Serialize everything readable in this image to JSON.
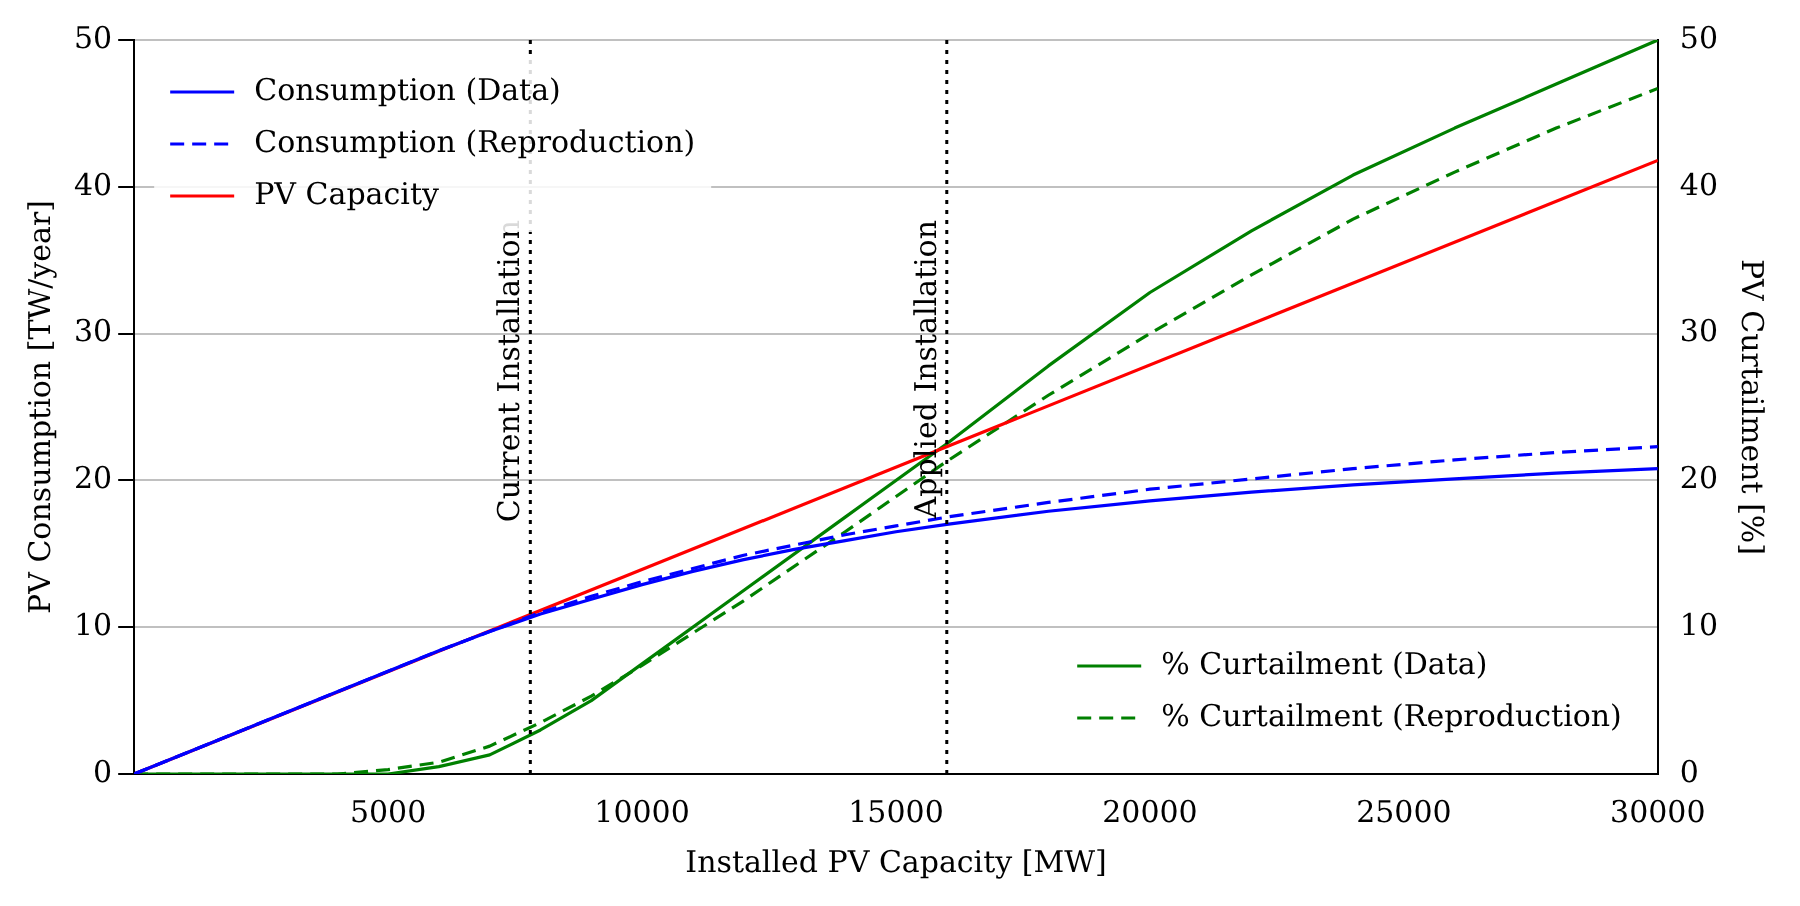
{
  "chart_data": {
    "type": "line",
    "xlabel": "Installed PV Capacity [MW]",
    "ylabel": "PV Consumption [TW/year]",
    "y2label": "PV Curtailment [%]",
    "xlim": [
      0,
      30000
    ],
    "xticks": [
      5000,
      10000,
      15000,
      20000,
      25000,
      30000
    ],
    "ylim": [
      0,
      50
    ],
    "yticks": [
      0,
      10,
      20,
      30,
      40,
      50
    ],
    "y2lim": [
      0,
      50
    ],
    "y2ticks": [
      0,
      10,
      20,
      30,
      40,
      50
    ],
    "grid": "y",
    "legend": "top left",
    "marker": "none",
    "series": [
      {
        "name": "Consumption (Data)",
        "color": "#0000ff",
        "line_style": "solid",
        "x": [
          0,
          2000,
          4000,
          6000,
          7000,
          8000,
          9000,
          10000,
          11000,
          12000,
          13000,
          14000,
          15000,
          16000,
          18000,
          20000,
          22000,
          24000,
          26000,
          28000,
          30000
        ],
        "values": [
          0,
          2.8,
          5.6,
          8.4,
          9.7,
          10.9,
          11.9,
          12.9,
          13.8,
          14.6,
          15.3,
          15.9,
          16.5,
          17.0,
          17.9,
          18.6,
          19.2,
          19.7,
          20.1,
          20.5,
          20.8
        ]
      },
      {
        "name": "Consumption (Reproduction)",
        "color": "#0000ff",
        "line_style": "dashed",
        "x": [
          0,
          2000,
          4000,
          6000,
          7000,
          8000,
          9000,
          10000,
          11000,
          12000,
          13000,
          14000,
          15000,
          16000,
          18000,
          20000,
          22000,
          24000,
          26000,
          28000,
          30000
        ],
        "values": [
          0,
          2.8,
          5.6,
          8.4,
          9.7,
          11.0,
          12.1,
          13.1,
          14.0,
          14.9,
          15.6,
          16.3,
          16.9,
          17.5,
          18.5,
          19.4,
          20.1,
          20.8,
          21.4,
          21.9,
          22.3
        ]
      },
      {
        "name": "PV Capacity",
        "color": "#ff0000",
        "line_style": "solid",
        "x": [
          0,
          30000
        ],
        "values": [
          0,
          41.8
        ]
      },
      {
        "name": "% Curtailment (Data)",
        "color": "#008000",
        "line_style": "solid",
        "axis": "y2",
        "x": [
          0,
          5000,
          6000,
          7000,
          8000,
          9000,
          10000,
          12000,
          14000,
          16000,
          18000,
          20000,
          22000,
          24000,
          26000,
          28000,
          30000
        ],
        "values": [
          0,
          0,
          0.5,
          1.3,
          3,
          5,
          7.5,
          12.5,
          17.5,
          22.5,
          27.8,
          32.8,
          37,
          40.8,
          44,
          47,
          50
        ]
      },
      {
        "name": "% Curtailment (Reproduction)",
        "color": "#008000",
        "line_style": "dashed",
        "axis": "y2",
        "x": [
          0,
          4000,
          5000,
          6000,
          7000,
          8000,
          9000,
          10000,
          12000,
          14000,
          16000,
          18000,
          20000,
          22000,
          24000,
          26000,
          28000,
          30000
        ],
        "values": [
          0,
          0,
          0.3,
          0.8,
          1.9,
          3.5,
          5.3,
          7.4,
          11.8,
          16.5,
          21.3,
          25.8,
          30,
          34,
          37.8,
          41,
          44,
          46.7
        ]
      }
    ],
    "ref_lines": [
      {
        "axis": "x",
        "value": 7800,
        "label": "Current Installation",
        "color": "#000000",
        "line_style": "dotted"
      },
      {
        "axis": "x",
        "value": 16000,
        "label": "Applied Installation",
        "color": "#000000",
        "line_style": "dotted"
      }
    ]
  }
}
